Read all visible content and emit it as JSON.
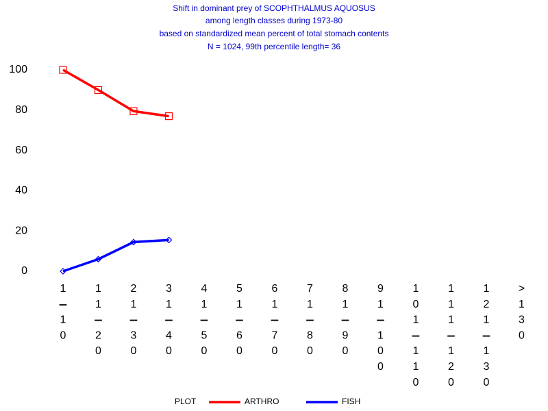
{
  "chart_data": {
    "type": "line",
    "title": [
      "Shift in dominant prey of SCOPHTHALMUS AQUOSUS",
      "among length classes during 1973-80",
      "based on standardized mean percent of  total stomach contents",
      "N =  1024, 99th percentile  length= 36"
    ],
    "categories": [
      "1-10",
      "11-20",
      "21-30",
      "31-40",
      "41-50",
      "51-60",
      "61-70",
      "71-80",
      "81-90",
      "91-100",
      "101-110",
      "111-120",
      "121-130",
      ">130"
    ],
    "series": [
      {
        "name": "ARTHRO",
        "color": "#ff0000",
        "marker": "square",
        "values": [
          100,
          90,
          79.5,
          77,
          null,
          null,
          null,
          null,
          null,
          null,
          null,
          null,
          null,
          null
        ]
      },
      {
        "name": "FISH",
        "color": "#0000ff",
        "marker": "diamond",
        "values": [
          0,
          6,
          14.5,
          15.5,
          null,
          null,
          null,
          null,
          null,
          null,
          null,
          null,
          null,
          null
        ]
      }
    ],
    "legend_title": "PLOT",
    "ylim": [
      0,
      100
    ],
    "yticks": [
      0,
      20,
      40,
      60,
      80,
      100
    ],
    "grid": false,
    "legend": "bottom"
  }
}
